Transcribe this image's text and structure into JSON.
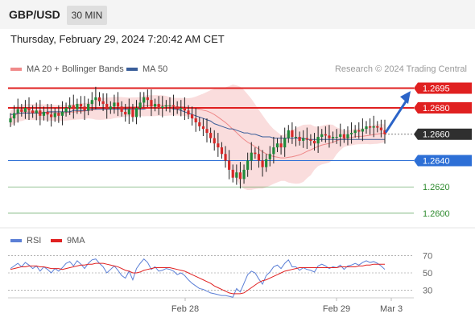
{
  "header": {
    "pair": "GBP/USD",
    "timeframe": "30 MIN"
  },
  "datetime": "Thursday, February 29, 2024 7:20:42 AM CET",
  "legend": {
    "main": [
      {
        "label": "MA 20 + Bollinger Bands",
        "color": "#f08a8a"
      },
      {
        "label": "MA 50",
        "color": "#3a5e9a"
      }
    ],
    "rsi": [
      {
        "label": "RSI",
        "color": "#5b7fd6"
      },
      {
        "label": "9MA",
        "color": "#e02020"
      }
    ]
  },
  "credit": "Research © 2024 Trading Central",
  "chart_data": [
    {
      "type": "candlestick",
      "ylim": [
        1.2592,
        1.2702
      ],
      "levels": [
        {
          "value": 1.2695,
          "label": "1.2695",
          "kind": "resistance",
          "color": "#e02020"
        },
        {
          "value": 1.268,
          "label": "1.2680",
          "kind": "resistance",
          "color": "#e02020"
        },
        {
          "value": 1.266,
          "label": "1.2660",
          "kind": "current",
          "color": "#333333"
        },
        {
          "value": 1.264,
          "label": "1.2640",
          "kind": "pivot",
          "color": "#2d6fd6"
        },
        {
          "value": 1.262,
          "label": "1.2620",
          "kind": "support",
          "color": "#2e8b2e"
        },
        {
          "value": 1.26,
          "label": "1.2600",
          "kind": "support",
          "color": "#2e8b2e"
        }
      ],
      "x_ticks": [
        "Feb 28",
        "Feb 29",
        "Mar 3"
      ],
      "closes": [
        1.2672,
        1.2676,
        1.2679,
        1.2677,
        1.268,
        1.2678,
        1.2676,
        1.2678,
        1.2674,
        1.2677,
        1.2675,
        1.2673,
        1.2676,
        1.2674,
        1.2677,
        1.268,
        1.2682,
        1.2679,
        1.2683,
        1.2681,
        1.2678,
        1.2683,
        1.2686,
        1.2688,
        1.2685,
        1.2683,
        1.2679,
        1.2681,
        1.2684,
        1.2681,
        1.2677,
        1.2675,
        1.2679,
        1.2673,
        1.268,
        1.2684,
        1.2688,
        1.2686,
        1.2681,
        1.2683,
        1.268,
        1.2681,
        1.2682,
        1.2682,
        1.2681,
        1.2679,
        1.268,
        1.2678,
        1.2675,
        1.2672,
        1.2669,
        1.2666,
        1.2664,
        1.2661,
        1.2657,
        1.2653,
        1.265,
        1.2645,
        1.264,
        1.2633,
        1.2627,
        1.2631,
        1.2626,
        1.2633,
        1.264,
        1.2646,
        1.2645,
        1.264,
        1.2635,
        1.2641,
        1.2645,
        1.265,
        1.2653,
        1.265,
        1.2657,
        1.2663,
        1.2658,
        1.2658,
        1.2655,
        1.2657,
        1.2656,
        1.2655,
        1.2653,
        1.2658,
        1.266,
        1.2659,
        1.2657,
        1.2658,
        1.2658,
        1.266,
        1.2657,
        1.266,
        1.2661,
        1.2663,
        1.2662,
        1.2664,
        1.2666,
        1.2665,
        1.2666,
        1.2665,
        1.2663,
        1.266
      ],
      "ma50": [
        1.2675,
        1.2675,
        1.2676,
        1.2676,
        1.2676,
        1.2676,
        1.2676,
        1.2676,
        1.2676,
        1.2676,
        1.2677,
        1.2677,
        1.2677,
        1.2677,
        1.2677,
        1.2677,
        1.2677,
        1.2678,
        1.2678,
        1.2678,
        1.2678,
        1.2678,
        1.2679,
        1.2679,
        1.2679,
        1.2679,
        1.2679,
        1.2679,
        1.2679,
        1.2679,
        1.2679,
        1.2679,
        1.2679,
        1.2679,
        1.2679,
        1.2679,
        1.2679,
        1.268,
        1.268,
        1.268,
        1.268,
        1.268,
        1.268,
        1.268,
        1.2679,
        1.2679,
        1.2678,
        1.2677,
        1.2676,
        1.2675,
        1.2674,
        1.2673,
        1.2672,
        1.2671,
        1.267,
        1.2668,
        1.2667,
        1.2666,
        1.2665,
        1.2664,
        1.2664,
        1.2663,
        1.2662,
        1.2661,
        1.2661,
        1.266,
        1.266,
        1.2659,
        1.2658,
        1.2658,
        1.2658,
        1.2657,
        1.2657,
        1.2657,
        1.2657,
        1.2657,
        1.2657,
        1.2657,
        1.2657,
        1.2657,
        1.2656,
        1.2656,
        1.2656,
        1.2656,
        1.2656,
        1.2656,
        1.2656,
        1.2656,
        1.2656,
        1.2656,
        1.2656,
        1.2656,
        1.2656,
        1.2656,
        1.2656,
        1.2656,
        1.2656,
        1.2656,
        1.2656,
        1.2656,
        1.2656,
        1.2656
      ]
    },
    {
      "type": "line",
      "ylim": [
        25,
        75
      ],
      "y_ticks": [
        70,
        50,
        30
      ],
      "rsi": [
        55,
        58,
        61,
        57,
        62,
        59,
        55,
        58,
        52,
        57,
        54,
        50,
        55,
        52,
        56,
        61,
        63,
        58,
        64,
        60,
        55,
        61,
        65,
        66,
        61,
        57,
        50,
        54,
        58,
        53,
        47,
        44,
        52,
        42,
        55,
        61,
        66,
        62,
        54,
        57,
        52,
        53,
        55,
        54,
        52,
        48,
        50,
        47,
        42,
        38,
        35,
        32,
        31,
        29,
        27,
        26,
        25,
        24,
        24,
        23,
        22,
        32,
        28,
        38,
        48,
        52,
        50,
        43,
        37,
        47,
        51,
        57,
        59,
        55,
        61,
        65,
        57,
        57,
        53,
        56,
        54,
        53,
        51,
        58,
        60,
        58,
        55,
        57,
        56,
        59,
        54,
        58,
        59,
        61,
        59,
        62,
        64,
        62,
        63,
        61,
        58,
        54
      ],
      "ma9": [
        54,
        55,
        56,
        57,
        57,
        58,
        58,
        58,
        57,
        57,
        56,
        55,
        55,
        55,
        54,
        55,
        56,
        57,
        58,
        59,
        59,
        60,
        60,
        61,
        61,
        61,
        60,
        59,
        58,
        57,
        55,
        53,
        52,
        50,
        50,
        51,
        53,
        54,
        55,
        56,
        56,
        56,
        56,
        56,
        55,
        54,
        53,
        52,
        50,
        48,
        46,
        44,
        42,
        40,
        38,
        35,
        33,
        31,
        29,
        27,
        26,
        26,
        26,
        27,
        30,
        33,
        36,
        39,
        41,
        42,
        44,
        46,
        48,
        50,
        52,
        53,
        54,
        55,
        56,
        56,
        56,
        56,
        56,
        56,
        56,
        56,
        56,
        56,
        56,
        57,
        57,
        57,
        57,
        57,
        58,
        58,
        59,
        59,
        60,
        60,
        60,
        60
      ]
    }
  ]
}
